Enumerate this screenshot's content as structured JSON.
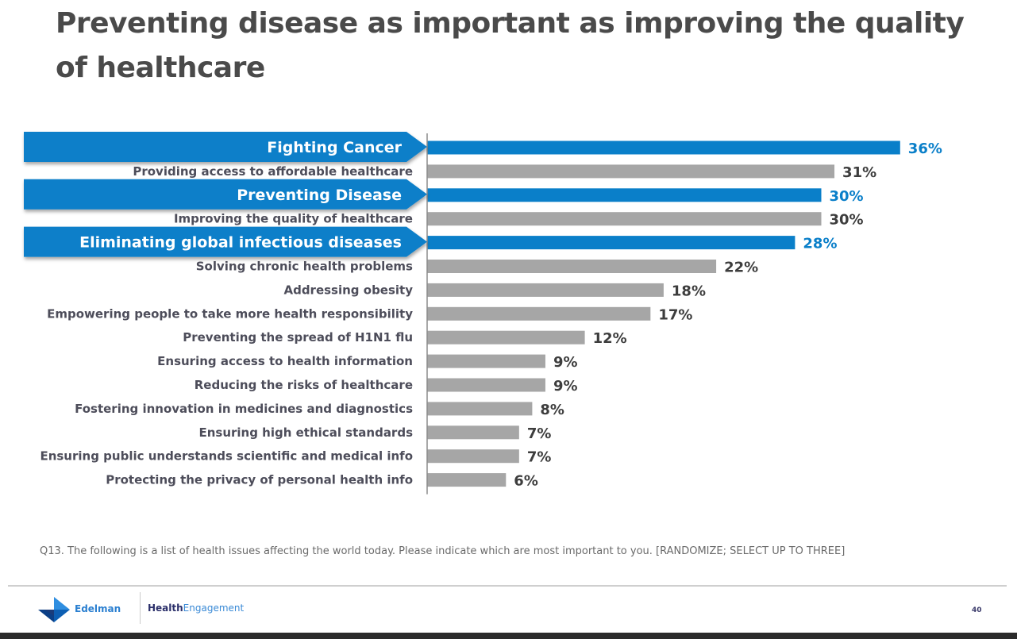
{
  "slide": {
    "title": "Preventing disease as important as improving the quality of healthcare",
    "footnote": "Q13. The following is a list of health issues affecting the world today. Please indicate which are most important to you. [RANDOMIZE; SELECT UP TO THREE]",
    "footer": {
      "brand": "Edelman",
      "product_part1": "Health",
      "product_part2": "Engagement",
      "page_number": "40",
      "logo_icon": "edelman-arrow-logo-icon"
    },
    "colors": {
      "highlight": "#0a7fc9",
      "bar_default": "#a6a6a6",
      "value_default": "#3d3d3d",
      "title": "#4a4a4a"
    }
  },
  "chart_data": {
    "type": "bar",
    "orientation": "horizontal",
    "title": "",
    "xlabel": "",
    "ylabel": "",
    "xlim": [
      0,
      36
    ],
    "grid": false,
    "legend": "none",
    "value_format": "percent",
    "categories": [
      "Fighting Cancer",
      "Providing access to affordable healthcare",
      "Preventing Disease",
      "Improving the quality of healthcare",
      "Eliminating global infectious diseases",
      "Solving chronic health problems",
      "Addressing obesity",
      "Empowering people to take more health responsibility",
      "Preventing the spread of H1N1 flu",
      "Ensuring access to health information",
      "Reducing the risks of healthcare",
      "Fostering innovation in medicines and diagnostics",
      "Ensuring high ethical standards",
      "Ensuring public understands scientific and medical info",
      "Protecting the privacy of personal health info"
    ],
    "values": [
      36,
      31,
      30,
      30,
      28,
      22,
      18,
      17,
      12,
      9,
      9,
      8,
      7,
      7,
      6
    ],
    "data_labels": [
      "36%",
      "31%",
      "30%",
      "30%",
      "28%",
      "22%",
      "18%",
      "17%",
      "12%",
      "9%",
      "9%",
      "8%",
      "7%",
      "7%",
      "6%"
    ],
    "highlighted": [
      true,
      false,
      true,
      false,
      true,
      false,
      false,
      false,
      false,
      false,
      false,
      false,
      false,
      false,
      false
    ]
  }
}
